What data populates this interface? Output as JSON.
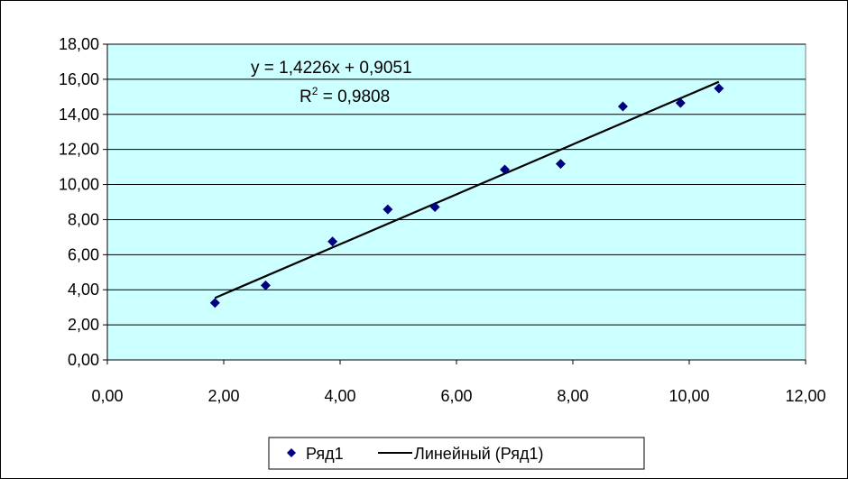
{
  "chart_data": {
    "type": "scatter",
    "title": "",
    "xlabel": "",
    "ylabel": "",
    "xlim": [
      0,
      12
    ],
    "ylim": [
      0,
      18
    ],
    "x_ticks": [
      0,
      2,
      4,
      6,
      8,
      10,
      12
    ],
    "y_ticks": [
      0,
      2,
      4,
      6,
      8,
      10,
      12,
      14,
      16,
      18
    ],
    "x_tick_labels": [
      "0,00",
      "2,00",
      "4,00",
      "6,00",
      "8,00",
      "10,00",
      "12,00"
    ],
    "y_tick_labels": [
      "0,00",
      "2,00",
      "4,00",
      "6,00",
      "8,00",
      "10,00",
      "12,00",
      "14,00",
      "16,00",
      "18,00"
    ],
    "grid": "horizontal",
    "legend_position": "bottom",
    "series": [
      {
        "name": "Ряд1",
        "marker": "diamond",
        "color": "#000080",
        "x": [
          1.85,
          2.72,
          3.87,
          4.82,
          5.63,
          6.83,
          7.79,
          8.86,
          9.85,
          10.51
        ],
        "y": [
          3.25,
          4.25,
          6.75,
          8.58,
          8.72,
          10.85,
          11.18,
          14.45,
          14.65,
          15.48
        ]
      }
    ],
    "trendline": {
      "name": "Линейный (Ряд1)",
      "type": "linear",
      "slope": 1.4226,
      "intercept": 0.9051,
      "x_range": [
        1.85,
        10.51
      ],
      "color": "#000000",
      "equation_label": "y = 1,4226x + 0,9051",
      "r2_prefix": "R",
      "r2_sup": "2",
      "r2_value": " = 0,9808"
    },
    "colors": {
      "plot_background": "#ccffff",
      "grid": "#000000",
      "marker": "#000080",
      "trendline": "#000000"
    }
  }
}
